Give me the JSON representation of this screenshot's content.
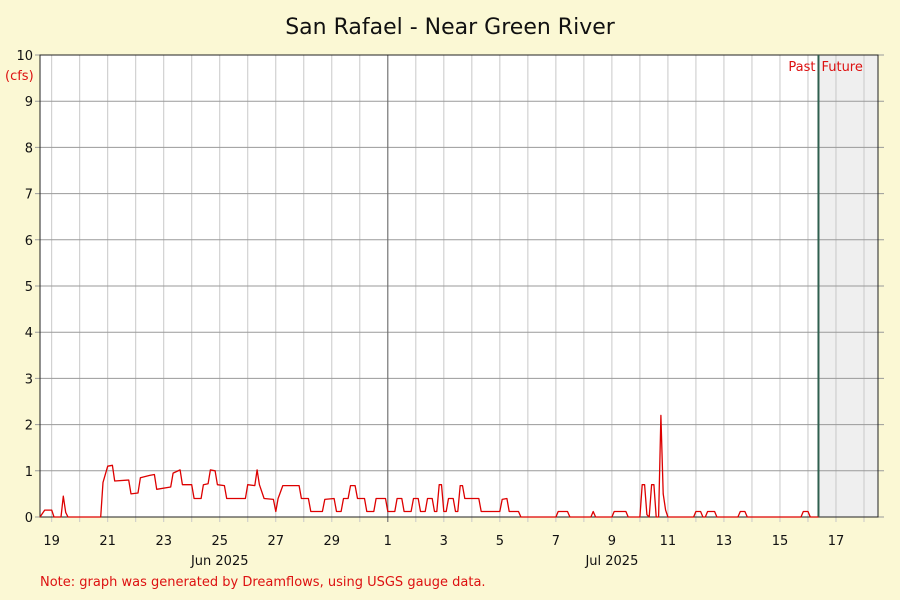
{
  "chart_data": {
    "type": "line",
    "title": "San Rafael - Near Green River",
    "ylabel": "(cfs)",
    "ylim": [
      0,
      10
    ],
    "y_ticks": [
      0,
      1,
      2,
      3,
      4,
      5,
      6,
      7,
      8,
      9,
      10
    ],
    "xlim": [
      "2025-06-18T14:00",
      "2025-07-18T12:00"
    ],
    "x_tick_labels": [
      {
        "date": "2025-06-19",
        "label": "19"
      },
      {
        "date": "2025-06-21",
        "label": "21"
      },
      {
        "date": "2025-06-23",
        "label": "23"
      },
      {
        "date": "2025-06-25",
        "label": "25"
      },
      {
        "date": "2025-06-27",
        "label": "27"
      },
      {
        "date": "2025-06-29",
        "label": "29"
      },
      {
        "date": "2025-07-01",
        "label": "1"
      },
      {
        "date": "2025-07-03",
        "label": "3"
      },
      {
        "date": "2025-07-05",
        "label": "5"
      },
      {
        "date": "2025-07-07",
        "label": "7"
      },
      {
        "date": "2025-07-09",
        "label": "9"
      },
      {
        "date": "2025-07-11",
        "label": "11"
      },
      {
        "date": "2025-07-13",
        "label": "13"
      },
      {
        "date": "2025-07-15",
        "label": "15"
      },
      {
        "date": "2025-07-17",
        "label": "17"
      }
    ],
    "month_labels": [
      {
        "date": "2025-06-25",
        "label": "Jun 2025"
      },
      {
        "date": "2025-07-09",
        "label": "Jul 2025"
      }
    ],
    "month_boundary": "2025-07-01",
    "now": "2025-07-16T09:00",
    "past_label": "Past",
    "future_label": "Future",
    "grid": true,
    "series": [
      {
        "color": "#dd0000",
        "points": [
          [
            "2025-06-18T14:00",
            0.0
          ],
          [
            "2025-06-18T18:00",
            0.15
          ],
          [
            "2025-06-19T00:00",
            0.15
          ],
          [
            "2025-06-19T02:00",
            0.0
          ],
          [
            "2025-06-19T08:00",
            0.0
          ],
          [
            "2025-06-19T10:00",
            0.45
          ],
          [
            "2025-06-19T12:00",
            0.1
          ],
          [
            "2025-06-19T14:00",
            0.0
          ],
          [
            "2025-06-20T18:00",
            0.0
          ],
          [
            "2025-06-20T20:00",
            0.75
          ],
          [
            "2025-06-21T00:00",
            1.1
          ],
          [
            "2025-06-21T04:00",
            1.12
          ],
          [
            "2025-06-21T06:00",
            0.78
          ],
          [
            "2025-06-21T18:00",
            0.8
          ],
          [
            "2025-06-21T20:00",
            0.5
          ],
          [
            "2025-06-22T02:00",
            0.52
          ],
          [
            "2025-06-22T04:00",
            0.85
          ],
          [
            "2025-06-22T12:00",
            0.9
          ],
          [
            "2025-06-22T16:00",
            0.92
          ],
          [
            "2025-06-22T18:00",
            0.6
          ],
          [
            "2025-06-23T06:00",
            0.65
          ],
          [
            "2025-06-23T08:00",
            0.95
          ],
          [
            "2025-06-23T14:00",
            1.02
          ],
          [
            "2025-06-23T16:00",
            0.7
          ],
          [
            "2025-06-24T00:00",
            0.7
          ],
          [
            "2025-06-24T02:00",
            0.4
          ],
          [
            "2025-06-24T08:00",
            0.4
          ],
          [
            "2025-06-24T10:00",
            0.7
          ],
          [
            "2025-06-24T14:00",
            0.72
          ],
          [
            "2025-06-24T16:00",
            1.02
          ],
          [
            "2025-06-24T20:00",
            1.0
          ],
          [
            "2025-06-24T22:00",
            0.7
          ],
          [
            "2025-06-25T04:00",
            0.68
          ],
          [
            "2025-06-25T06:00",
            0.4
          ],
          [
            "2025-06-25T22:00",
            0.4
          ],
          [
            "2025-06-26T00:00",
            0.7
          ],
          [
            "2025-06-26T06:00",
            0.68
          ],
          [
            "2025-06-26T08:00",
            1.02
          ],
          [
            "2025-06-26T10:00",
            0.7
          ],
          [
            "2025-06-26T14:00",
            0.4
          ],
          [
            "2025-06-26T22:00",
            0.38
          ],
          [
            "2025-06-27T00:00",
            0.12
          ],
          [
            "2025-06-27T02:00",
            0.4
          ],
          [
            "2025-06-27T06:00",
            0.68
          ],
          [
            "2025-06-27T20:00",
            0.68
          ],
          [
            "2025-06-27T22:00",
            0.4
          ],
          [
            "2025-06-28T04:00",
            0.4
          ],
          [
            "2025-06-28T06:00",
            0.12
          ],
          [
            "2025-06-28T16:00",
            0.12
          ],
          [
            "2025-06-28T18:00",
            0.38
          ],
          [
            "2025-06-29T02:00",
            0.4
          ],
          [
            "2025-06-29T04:00",
            0.12
          ],
          [
            "2025-06-29T08:00",
            0.12
          ],
          [
            "2025-06-29T10:00",
            0.4
          ],
          [
            "2025-06-29T14:00",
            0.4
          ],
          [
            "2025-06-29T16:00",
            0.68
          ],
          [
            "2025-06-29T20:00",
            0.68
          ],
          [
            "2025-06-29T22:00",
            0.4
          ],
          [
            "2025-06-30T04:00",
            0.4
          ],
          [
            "2025-06-30T06:00",
            0.12
          ],
          [
            "2025-06-30T12:00",
            0.12
          ],
          [
            "2025-06-30T14:00",
            0.4
          ],
          [
            "2025-06-30T22:00",
            0.4
          ],
          [
            "2025-07-01T00:00",
            0.12
          ],
          [
            "2025-07-01T06:00",
            0.12
          ],
          [
            "2025-07-01T08:00",
            0.4
          ],
          [
            "2025-07-01T12:00",
            0.4
          ],
          [
            "2025-07-01T14:00",
            0.12
          ],
          [
            "2025-07-01T20:00",
            0.12
          ],
          [
            "2025-07-01T22:00",
            0.4
          ],
          [
            "2025-07-02T02:00",
            0.4
          ],
          [
            "2025-07-02T04:00",
            0.12
          ],
          [
            "2025-07-02T08:00",
            0.12
          ],
          [
            "2025-07-02T10:00",
            0.4
          ],
          [
            "2025-07-02T14:00",
            0.4
          ],
          [
            "2025-07-02T16:00",
            0.12
          ],
          [
            "2025-07-02T18:00",
            0.12
          ],
          [
            "2025-07-02T20:00",
            0.7
          ],
          [
            "2025-07-02T22:00",
            0.7
          ],
          [
            "2025-07-03T00:00",
            0.12
          ],
          [
            "2025-07-03T02:00",
            0.12
          ],
          [
            "2025-07-03T04:00",
            0.4
          ],
          [
            "2025-07-03T08:00",
            0.4
          ],
          [
            "2025-07-03T10:00",
            0.12
          ],
          [
            "2025-07-03T12:00",
            0.12
          ],
          [
            "2025-07-03T14:00",
            0.68
          ],
          [
            "2025-07-03T16:00",
            0.68
          ],
          [
            "2025-07-03T18:00",
            0.4
          ],
          [
            "2025-07-04T06:00",
            0.4
          ],
          [
            "2025-07-04T08:00",
            0.12
          ],
          [
            "2025-07-05T00:00",
            0.12
          ],
          [
            "2025-07-05T02:00",
            0.38
          ],
          [
            "2025-07-05T06:00",
            0.4
          ],
          [
            "2025-07-05T08:00",
            0.12
          ],
          [
            "2025-07-05T16:00",
            0.12
          ],
          [
            "2025-07-05T18:00",
            0.0
          ],
          [
            "2025-07-07T00:00",
            0.0
          ],
          [
            "2025-07-07T02:00",
            0.12
          ],
          [
            "2025-07-07T10:00",
            0.12
          ],
          [
            "2025-07-07T12:00",
            0.0
          ],
          [
            "2025-07-08T06:00",
            0.0
          ],
          [
            "2025-07-08T08:00",
            0.12
          ],
          [
            "2025-07-08T10:00",
            0.0
          ],
          [
            "2025-07-09T00:00",
            0.0
          ],
          [
            "2025-07-09T02:00",
            0.12
          ],
          [
            "2025-07-09T12:00",
            0.12
          ],
          [
            "2025-07-09T14:00",
            0.0
          ],
          [
            "2025-07-10T00:00",
            0.0
          ],
          [
            "2025-07-10T02:00",
            0.7
          ],
          [
            "2025-07-10T04:00",
            0.7
          ],
          [
            "2025-07-10T06:00",
            0.05
          ],
          [
            "2025-07-10T08:00",
            0.0
          ],
          [
            "2025-07-10T10:00",
            0.7
          ],
          [
            "2025-07-10T12:00",
            0.7
          ],
          [
            "2025-07-10T14:00",
            0.0
          ],
          [
            "2025-07-10T16:00",
            0.0
          ],
          [
            "2025-07-10T18:00",
            2.2
          ],
          [
            "2025-07-10T20:00",
            0.5
          ],
          [
            "2025-07-10T22:00",
            0.15
          ],
          [
            "2025-07-11T00:00",
            0.0
          ],
          [
            "2025-07-11T22:00",
            0.0
          ],
          [
            "2025-07-12T00:00",
            0.12
          ],
          [
            "2025-07-12T04:00",
            0.12
          ],
          [
            "2025-07-12T06:00",
            0.0
          ],
          [
            "2025-07-12T08:00",
            0.0
          ],
          [
            "2025-07-12T10:00",
            0.12
          ],
          [
            "2025-07-12T16:00",
            0.12
          ],
          [
            "2025-07-12T18:00",
            0.0
          ],
          [
            "2025-07-13T12:00",
            0.0
          ],
          [
            "2025-07-13T14:00",
            0.12
          ],
          [
            "2025-07-13T18:00",
            0.12
          ],
          [
            "2025-07-13T20:00",
            0.0
          ],
          [
            "2025-07-15T18:00",
            0.0
          ],
          [
            "2025-07-15T20:00",
            0.12
          ],
          [
            "2025-07-16T00:00",
            0.12
          ],
          [
            "2025-07-16T02:00",
            0.0
          ],
          [
            "2025-07-16T09:00",
            0.0
          ]
        ]
      }
    ]
  },
  "note": "Note: graph was generated by Dreamflows, using USGS gauge data."
}
